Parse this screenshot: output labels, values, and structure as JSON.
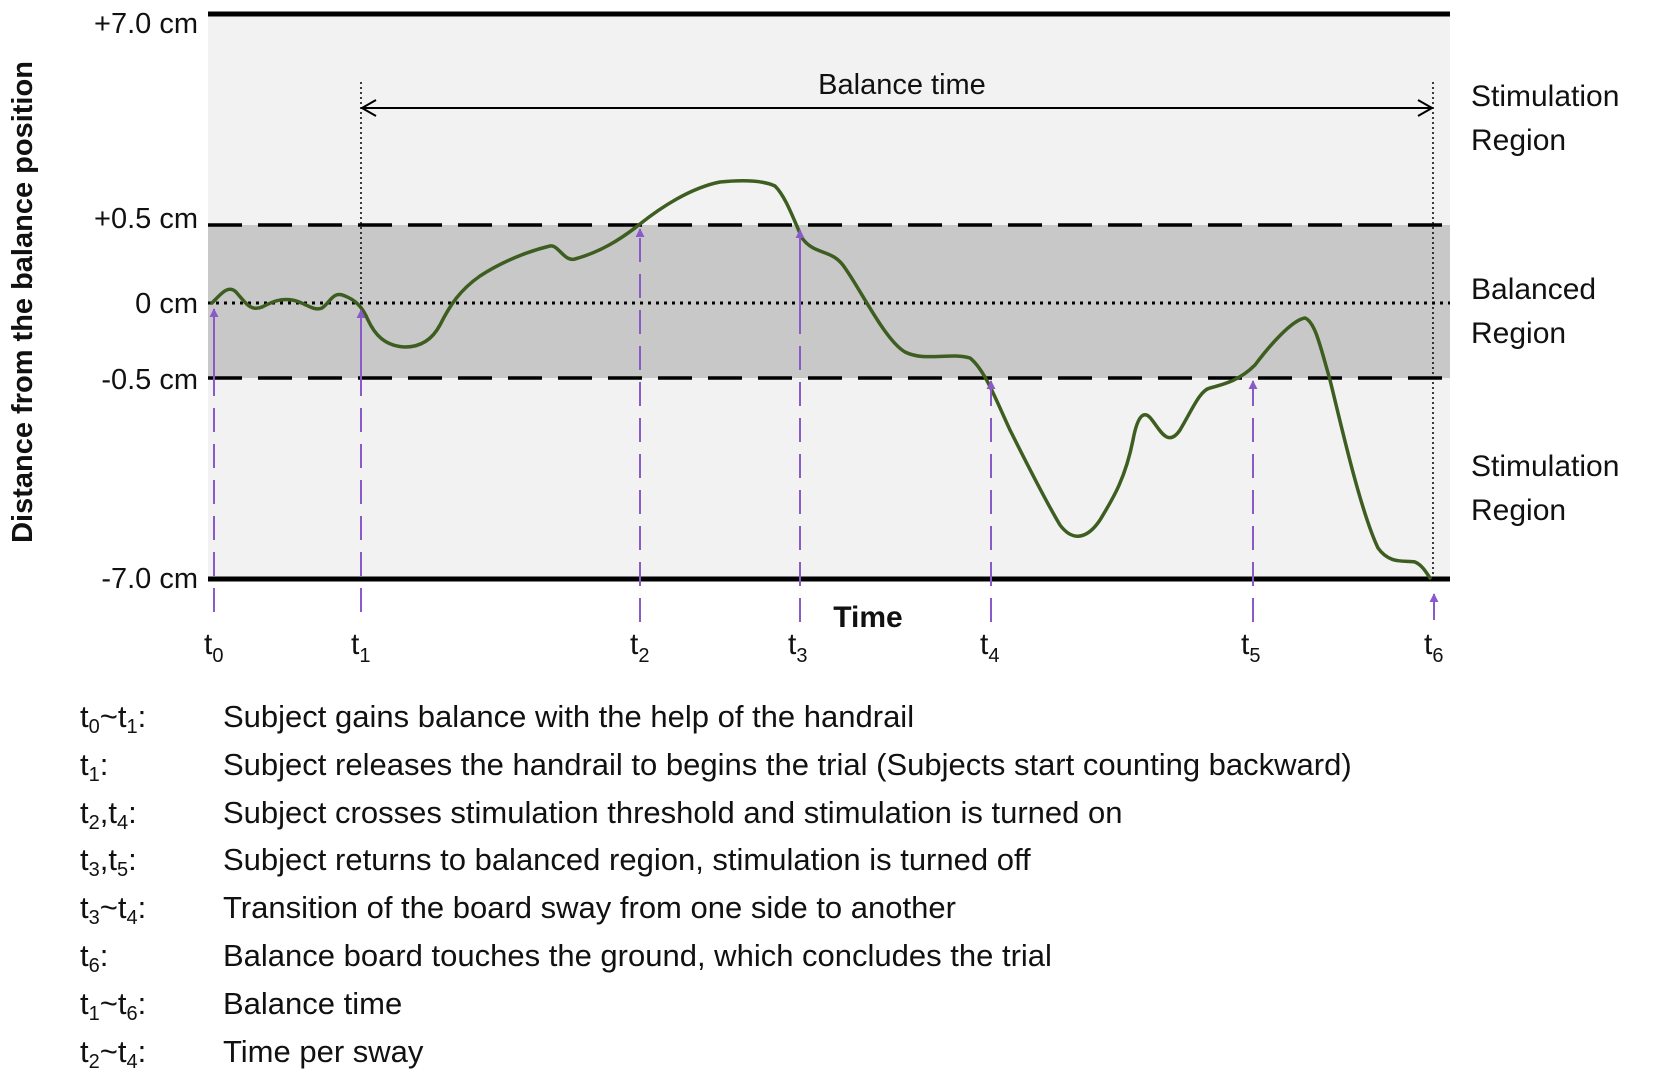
{
  "y_axis": {
    "title": "Distance from the balance position",
    "levels": [
      {
        "label": "+7.0 cm",
        "value": 7.0
      },
      {
        "label": "+0.5 cm",
        "value": 0.5
      },
      {
        "label": "0 cm",
        "value": 0
      },
      {
        "label": "-0.5 cm",
        "value": -0.5
      },
      {
        "label": "-7.0 cm",
        "value": -7.0
      }
    ]
  },
  "x_axis": {
    "title": "Time",
    "ticks": [
      {
        "base": "t",
        "sub": "0"
      },
      {
        "base": "t",
        "sub": "1"
      },
      {
        "base": "t",
        "sub": "2"
      },
      {
        "base": "t",
        "sub": "3"
      },
      {
        "base": "t",
        "sub": "4"
      },
      {
        "base": "t",
        "sub": "5"
      },
      {
        "base": "t",
        "sub": "6"
      }
    ]
  },
  "regions": {
    "upper": [
      "Stimulation",
      "Region"
    ],
    "middle": [
      "Balanced",
      "Region"
    ],
    "lower": [
      "Stimulation",
      "Region"
    ]
  },
  "balance_time_label": "Balance time",
  "colors": {
    "curve": "#3d5e20",
    "arrow": "#8a5ac8",
    "stimulation_region": "#f2f2f2",
    "balanced_region": "#c8c8c8"
  },
  "legend": [
    {
      "term": [
        {
          "t": "t"
        },
        {
          "s": "0"
        },
        {
          "t": "~t"
        },
        {
          "s": "1"
        },
        {
          "t": ":"
        }
      ],
      "desc": "Subject gains balance with the help of the handrail"
    },
    {
      "term": [
        {
          "t": "t"
        },
        {
          "s": "1"
        },
        {
          "t": ":"
        }
      ],
      "desc": "Subject releases the handrail to begins the trial (Subjects start counting backward)"
    },
    {
      "term": [
        {
          "t": "t"
        },
        {
          "s": "2"
        },
        {
          "t": ",t"
        },
        {
          "s": "4"
        },
        {
          "t": ":"
        }
      ],
      "desc": "Subject crosses stimulation threshold and stimulation is turned on"
    },
    {
      "term": [
        {
          "t": "t"
        },
        {
          "s": "3"
        },
        {
          "t": ",t"
        },
        {
          "s": "5"
        },
        {
          "t": ":"
        }
      ],
      "desc": "Subject returns to balanced region, stimulation is turned off"
    },
    {
      "term": [
        {
          "t": "t"
        },
        {
          "s": "3"
        },
        {
          "t": "~t"
        },
        {
          "s": "4"
        },
        {
          "t": ":"
        }
      ],
      "desc": "Transition of the board sway from one side to another"
    },
    {
      "term": [
        {
          "t": "t"
        },
        {
          "s": "6"
        },
        {
          "t": ":"
        }
      ],
      "desc": "Balance board touches the ground, which concludes the trial"
    },
    {
      "term": [
        {
          "t": "t"
        },
        {
          "s": "1"
        },
        {
          "t": "~t"
        },
        {
          "s": "6"
        },
        {
          "t": ":"
        }
      ],
      "desc": "Balance time"
    },
    {
      "term": [
        {
          "t": "t"
        },
        {
          "s": "2"
        },
        {
          "t": "~t"
        },
        {
          "s": "4"
        },
        {
          "t": ":"
        }
      ],
      "desc": "Time per sway"
    }
  ]
}
